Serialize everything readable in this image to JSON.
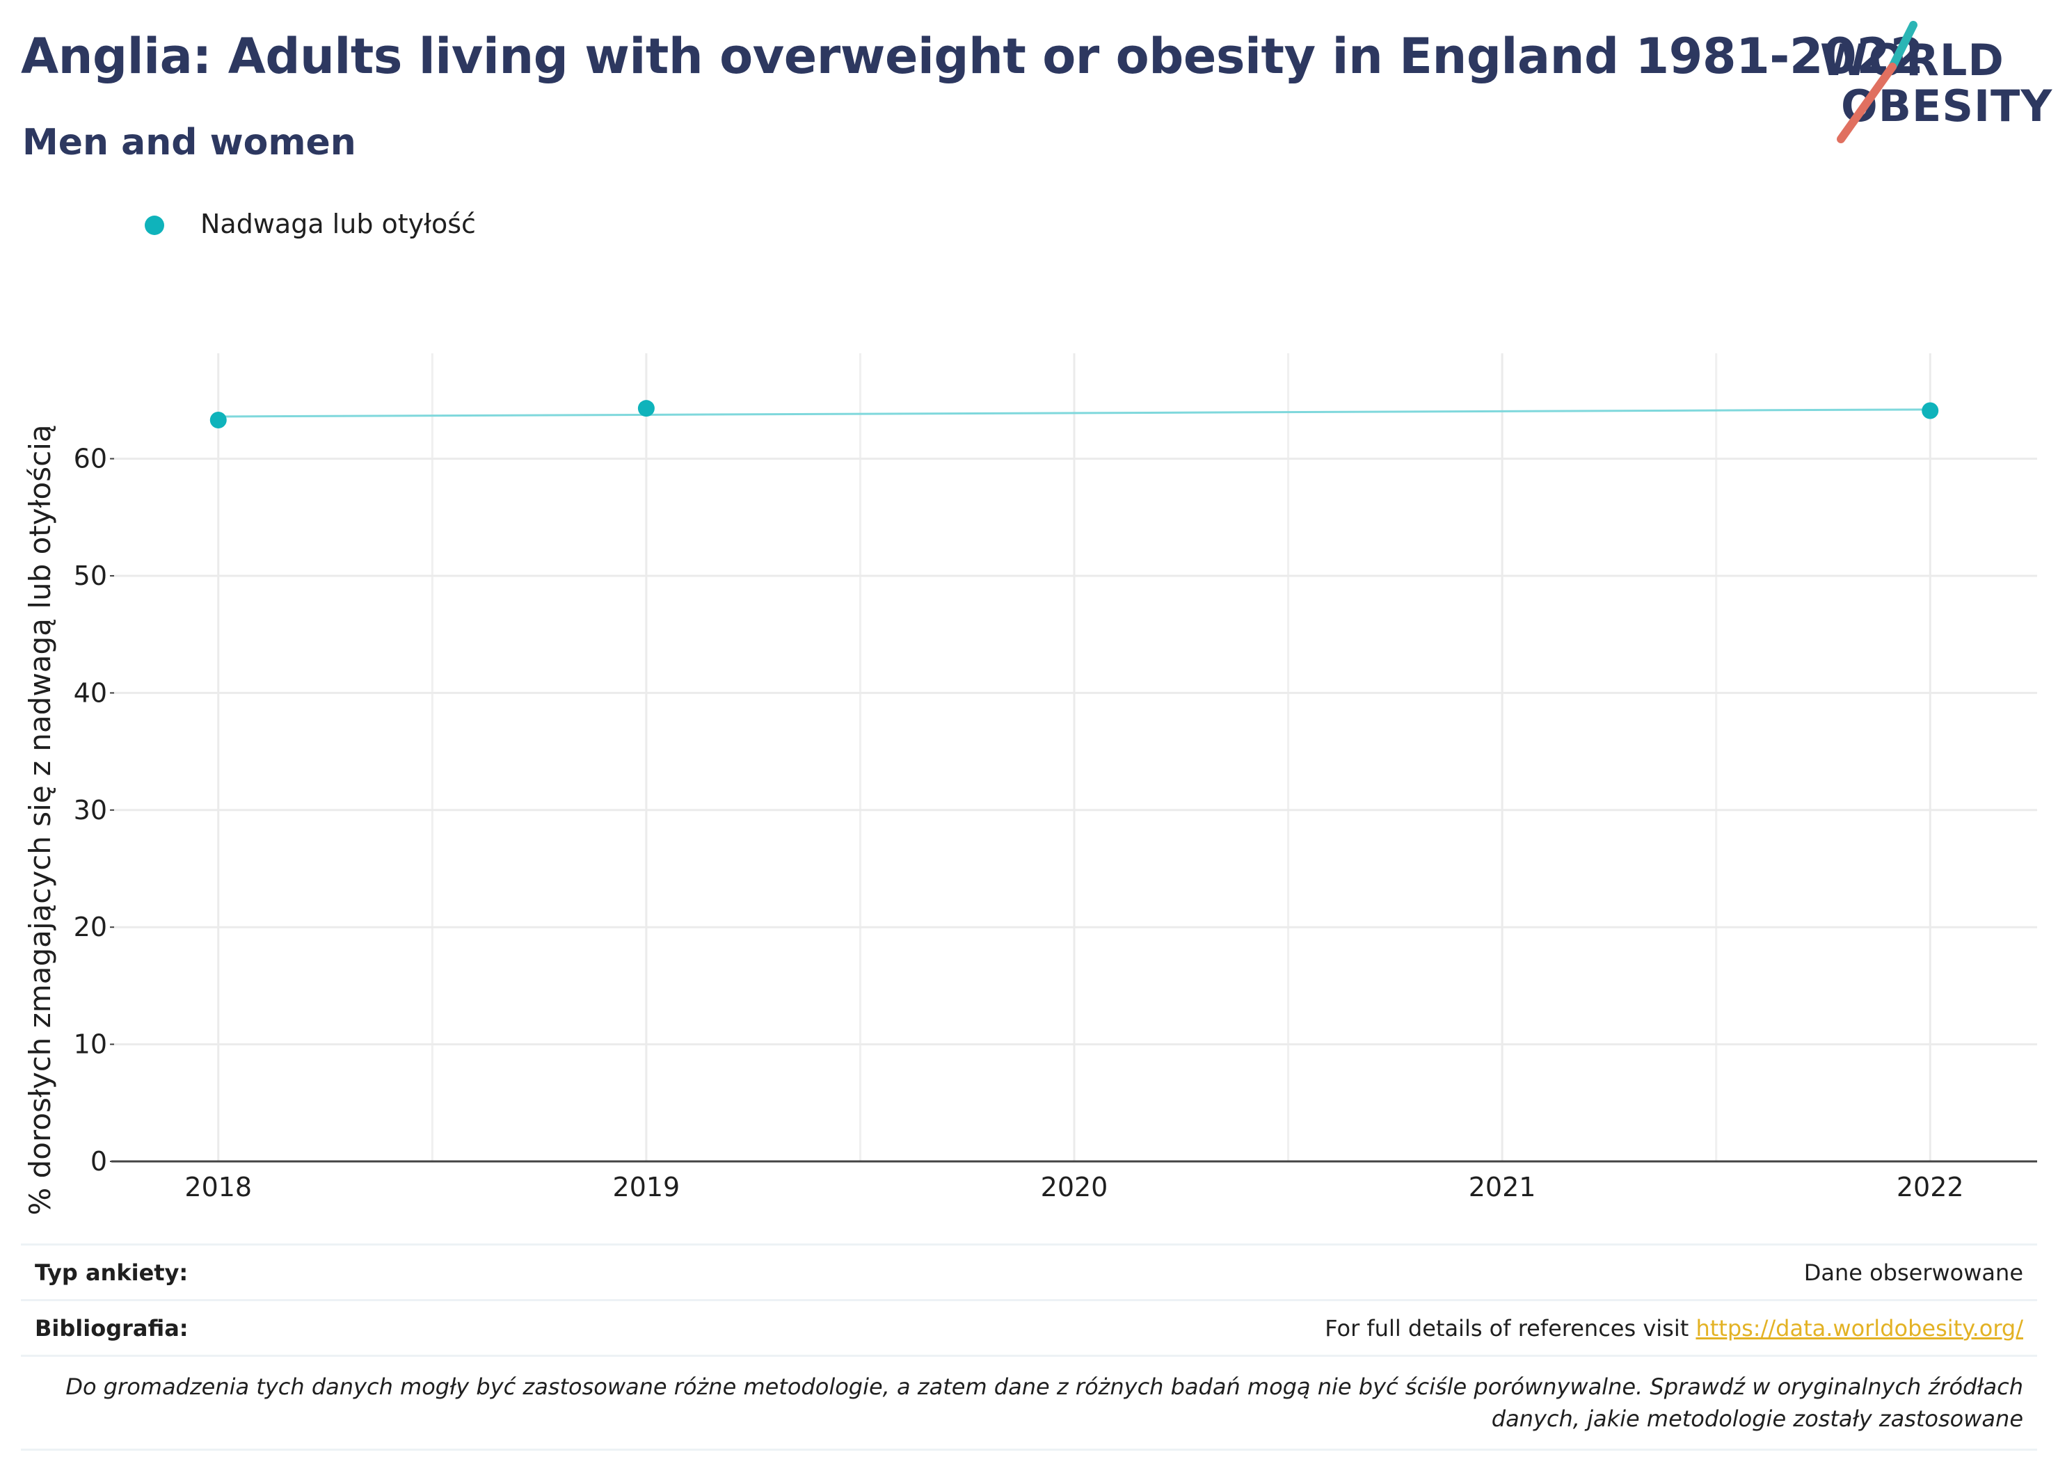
{
  "title": "Anglia: Adults living with overweight or obesity in England 1981-2022",
  "subtitle": "Men and women",
  "logo": {
    "line1": "WORLD",
    "line2": "OBESITY",
    "accent_teal": "#2bb5b5",
    "accent_red": "#e07060"
  },
  "legend": {
    "label": "Nadwaga lub otyłość",
    "color": "#0fb3bb"
  },
  "chart_data": {
    "type": "scatter",
    "title": "",
    "ylabel": "% dorosłych zmagających się z nadwagą lub otyłością",
    "xlabel": "",
    "x_ticks": [
      "2018",
      "2019",
      "2020",
      "2021",
      "2022"
    ],
    "y_ticks": [
      "0",
      "10",
      "20",
      "30",
      "40",
      "50",
      "60"
    ],
    "xlim": [
      2017.75,
      2022.25
    ],
    "ylim": [
      0,
      69
    ],
    "grid": true,
    "legend_position": "top-left",
    "series": [
      {
        "name": "Nadwaga lub otyłość",
        "color": "#0fb3bb",
        "points": [
          {
            "x": 2018,
            "y": 63.3
          },
          {
            "x": 2019,
            "y": 64.3
          },
          {
            "x": 2022,
            "y": 64.1
          }
        ]
      }
    ],
    "trendline": {
      "color": "#7fd8dc",
      "start": {
        "x": 2018,
        "y": 63.6
      },
      "end": {
        "x": 2022,
        "y": 64.2
      }
    }
  },
  "footer": {
    "survey_key": "Typ ankiety:",
    "survey_value": "Dane obserwowane",
    "biblio_key": "Bibliografia:",
    "biblio_text": "For full details of references visit ",
    "biblio_link": "https://data.worldobesity.org/",
    "note": "Do gromadzenia tych danych mogły być zastosowane różne metodologie, a zatem dane z różnych badań mogą nie być ściśle porównywalne. Sprawdź w oryginalnych źródłach danych, jakie metodologie zostały zastosowane"
  }
}
